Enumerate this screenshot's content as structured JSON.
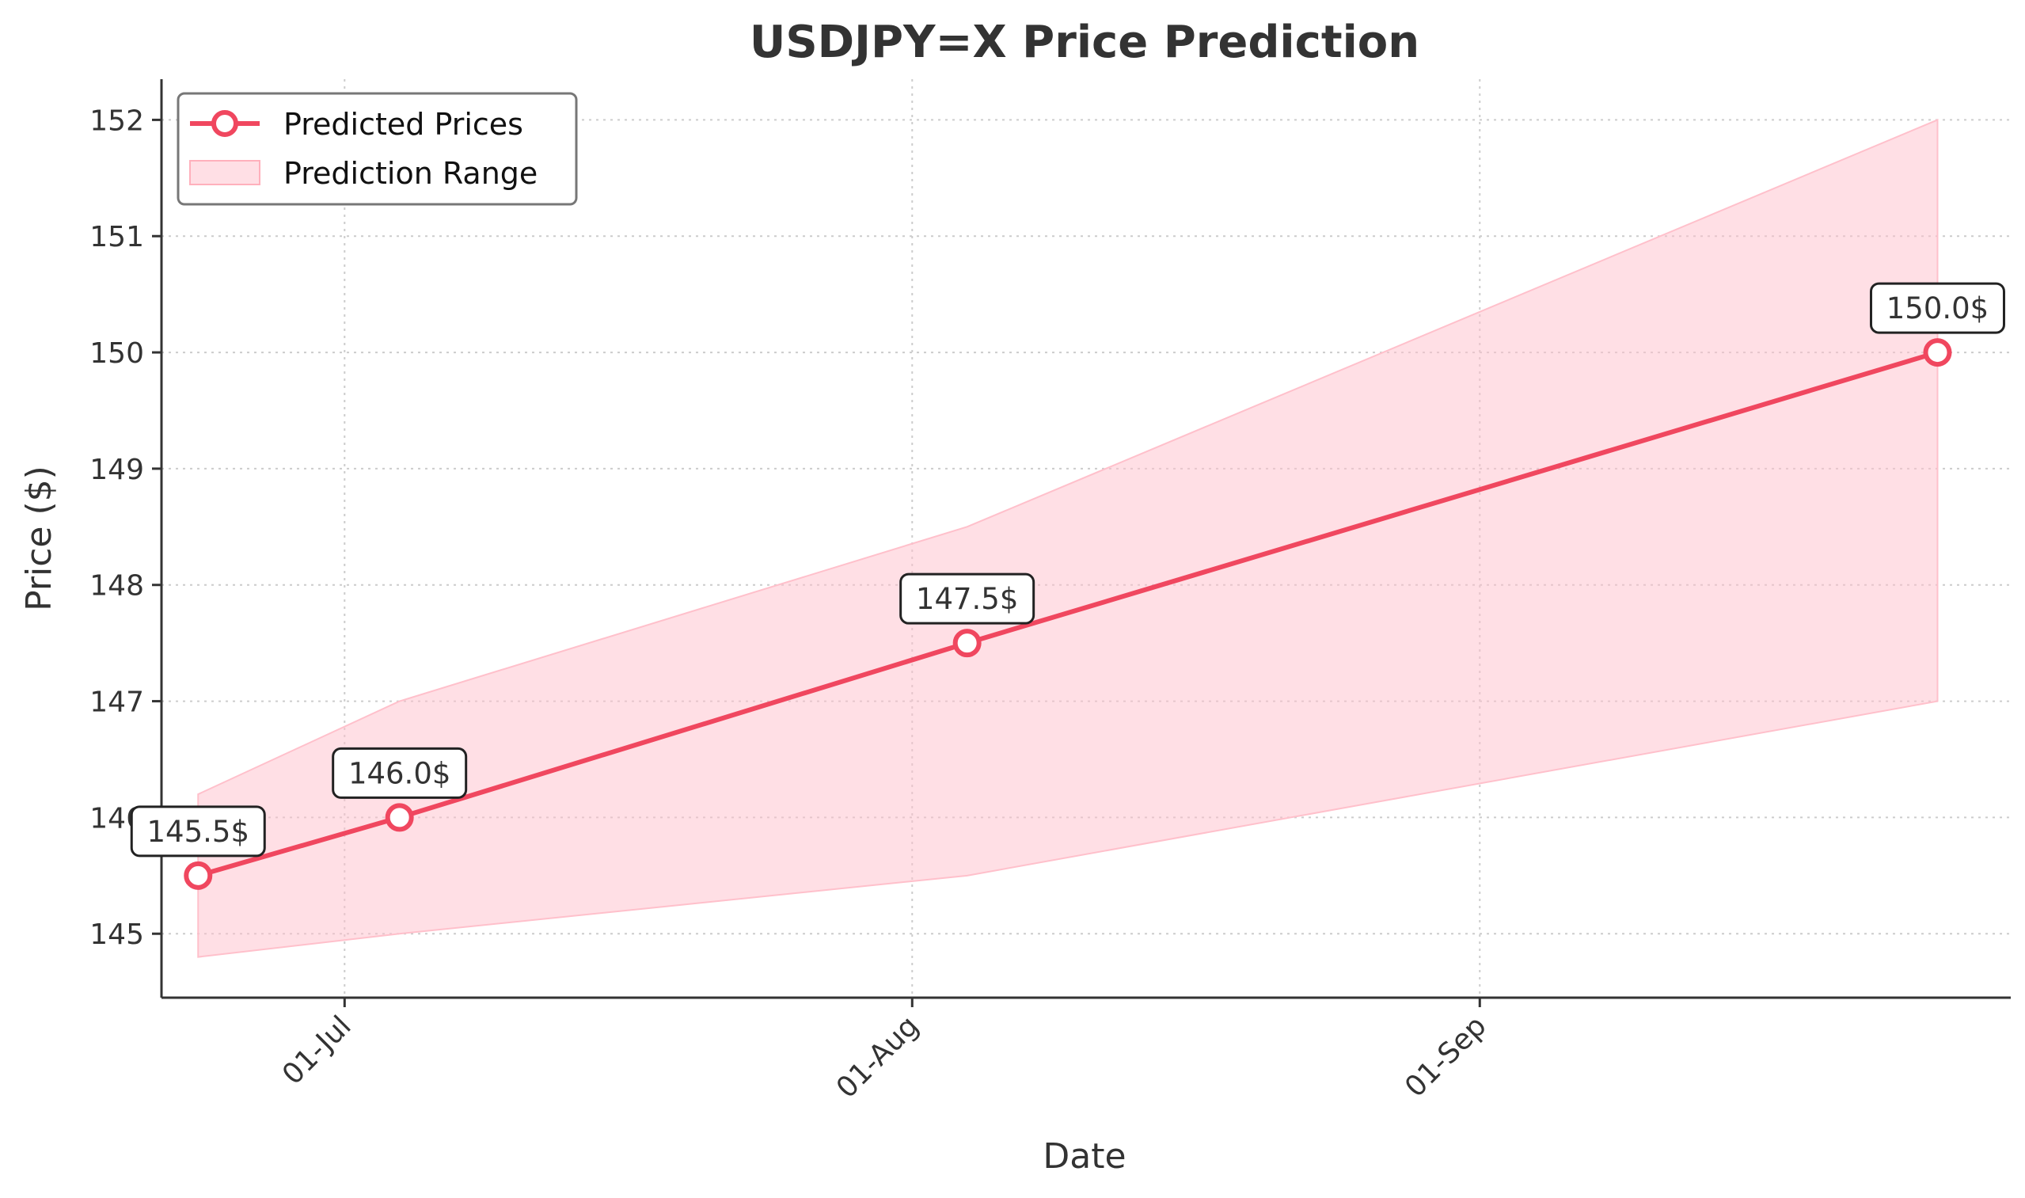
{
  "chart_data": {
    "type": "line",
    "title": "USDJPY=X Price Prediction",
    "xlabel": "Date",
    "ylabel": "Price ($)",
    "x_ticks": [
      {
        "date": "2025-07-01",
        "label": "01-Jul"
      },
      {
        "date": "2025-08-01",
        "label": "01-Aug"
      },
      {
        "date": "2025-09-01",
        "label": "01-Sep"
      }
    ],
    "y_ticks": [
      145,
      146,
      147,
      148,
      149,
      150,
      151,
      152
    ],
    "ylim": [
      144.45,
      152.35
    ],
    "xlim": [
      "2025-06-21",
      "2025-09-30"
    ],
    "grid": true,
    "legend_position": "top-left",
    "colors": {
      "line": "#f0475f",
      "band": "#ffc0cb",
      "axis": "#333333",
      "grid": "#cccccc"
    },
    "series": [
      {
        "name": "Predicted Prices",
        "points": [
          {
            "x": "2025-06-23",
            "y": 145.5,
            "label": "145.5$"
          },
          {
            "x": "2025-07-04",
            "y": 146.0,
            "label": "146.0$"
          },
          {
            "x": "2025-08-04",
            "y": 147.5,
            "label": "147.5$"
          },
          {
            "x": "2025-09-26",
            "y": 150.0,
            "label": "150.0$"
          }
        ]
      }
    ],
    "range": {
      "name": "Prediction Range",
      "x": [
        "2025-06-23",
        "2025-07-04",
        "2025-08-04",
        "2025-09-26"
      ],
      "lower": [
        144.8,
        145.0,
        145.5,
        147.0
      ],
      "upper": [
        146.2,
        147.0,
        148.5,
        152.0
      ]
    }
  }
}
